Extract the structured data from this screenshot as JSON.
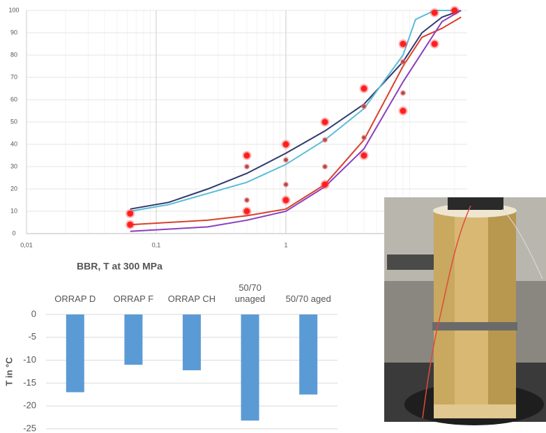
{
  "chart_data": [
    {
      "type": "line",
      "xscale": "log",
      "xlim": [
        0.01,
        25
      ],
      "ylim": [
        0,
        100
      ],
      "xticks": [
        {
          "value": 0.01,
          "label": "0,01"
        },
        {
          "value": 0.1,
          "label": "0,1"
        },
        1
      ],
      "yticks": [
        0,
        10,
        20,
        30,
        40,
        50,
        60,
        70,
        80,
        90,
        100
      ],
      "grid": true,
      "series": [
        {
          "color": "#2e3a6e",
          "x": [
            0.063,
            0.125,
            0.25,
            0.5,
            1,
            2,
            4,
            8,
            11.2,
            16,
            22.4
          ],
          "values": [
            11,
            14,
            20,
            27,
            36,
            46,
            58,
            77,
            90,
            97,
            100
          ]
        },
        {
          "color": "#5bbcd8",
          "x": [
            0.063,
            0.125,
            0.25,
            0.5,
            1,
            2,
            4,
            8,
            10,
            14,
            22.4
          ],
          "values": [
            10,
            13,
            18,
            23,
            31,
            42,
            56,
            80,
            96,
            100,
            100
          ]
        },
        {
          "color": "#d9402a",
          "x": [
            0.063,
            0.25,
            0.5,
            1,
            2,
            4,
            8,
            11.2,
            16,
            22.4
          ],
          "values": [
            4,
            6,
            8,
            11,
            22,
            42,
            75,
            88,
            92,
            97
          ]
        },
        {
          "color": "#8a3fc0",
          "x": [
            0.063,
            0.25,
            0.5,
            1,
            2,
            4,
            8,
            16,
            22.4
          ],
          "values": [
            1,
            3,
            6,
            10,
            21,
            38,
            68,
            95,
            100
          ]
        },
        {
          "mode": "markers",
          "marker": "large",
          "color": "#ff1e1e",
          "x": [
            0.063,
            0.063,
            0.5,
            0.5,
            1,
            1,
            2,
            2,
            4,
            4,
            8,
            8,
            14,
            14,
            20
          ],
          "values": [
            9,
            4,
            35,
            10,
            40,
            15,
            50,
            22,
            65,
            35,
            85,
            55,
            99,
            85,
            100
          ]
        },
        {
          "mode": "markers",
          "marker": "small",
          "color": "#a0464a",
          "x": [
            0.5,
            0.5,
            1,
            1,
            2,
            2,
            4,
            4,
            8,
            8
          ],
          "values": [
            30,
            15,
            33,
            22,
            42,
            30,
            57,
            43,
            77,
            63
          ]
        }
      ]
    },
    {
      "type": "bar",
      "title": "BBR, T at 300 MPa",
      "ylabel": "T in °C",
      "categories": [
        "ORRAP D",
        "ORRAP F",
        "ORRAP CH",
        "50/70\nunaged",
        "50/70 aged"
      ],
      "values": [
        -17,
        -11,
        -12.2,
        -23.2,
        -17.5
      ],
      "color": "#5b9bd5",
      "ylim": [
        -25,
        0
      ],
      "yticks": [
        0,
        -5,
        -10,
        -15,
        -20,
        -25
      ],
      "grid": true
    }
  ]
}
